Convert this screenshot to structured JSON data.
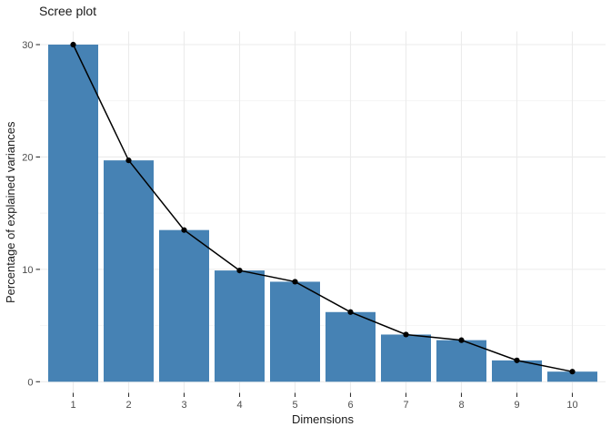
{
  "chart_data": {
    "type": "bar",
    "overlay": "line-points",
    "title": "Scree plot",
    "xlabel": "Dimensions",
    "ylabel": "Percentage of explained variances",
    "categories": [
      "1",
      "2",
      "3",
      "4",
      "5",
      "6",
      "7",
      "8",
      "9",
      "10"
    ],
    "values": [
      30.0,
      19.7,
      13.5,
      9.9,
      8.9,
      6.2,
      4.2,
      3.7,
      1.9,
      0.9
    ],
    "ylim": [
      0,
      30
    ],
    "yticks": [
      0,
      10,
      20,
      30
    ],
    "yticks_minor": [
      5,
      15,
      25
    ],
    "grid": true,
    "legend": "none",
    "colors": {
      "background": "#FFFFFF",
      "bar_fill": "#4682B4",
      "line": "#000000",
      "point": "#000000",
      "grid_major": "#EBEBEB",
      "grid_minor": "#F0F0F0",
      "tick_mark": "#333333",
      "axis_text": "#4D4D4D",
      "title_text": "#1A1A1A"
    }
  }
}
